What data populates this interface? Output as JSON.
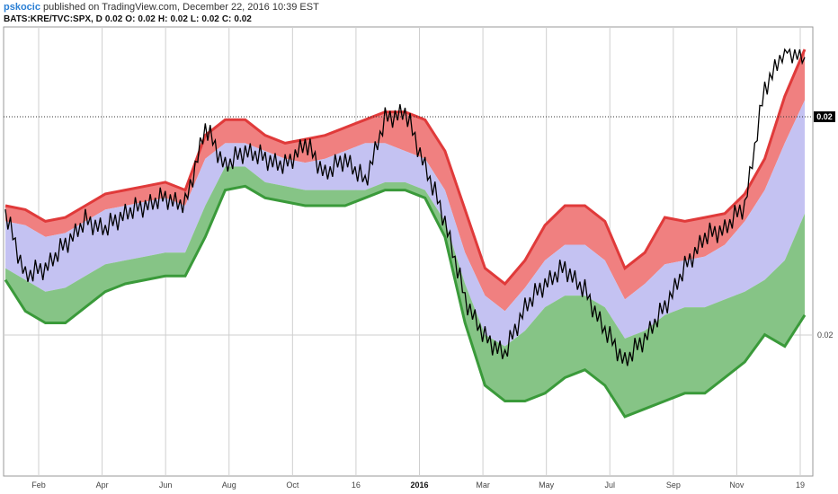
{
  "header": {
    "author": "pskocic",
    "published_text": "published on TradingView.com, December 22, 2016 10:39 EST"
  },
  "ohlc_bar": {
    "symbol": "BATS:KRE/TVC:SPX, D",
    "value": "0.02",
    "open_label": "O:",
    "open": "0.02",
    "high_label": "H:",
    "high": "0.02",
    "low_label": "L:",
    "low": "0.02",
    "close_label": "C:",
    "close": "0.02"
  },
  "colors": {
    "red_fill": "#f08080",
    "red_line": "#e03a3a",
    "blue_fill": "#c4c2f2",
    "green_fill": "#86c486",
    "green_line": "#3a9a3a",
    "price_line": "#000000",
    "grid": "#cfcfcf",
    "last_price_tag": "#000000"
  },
  "chart_data": {
    "type": "line",
    "x_ticks": [
      {
        "label": "Feb"
      },
      {
        "label": "Apr"
      },
      {
        "label": "Jun"
      },
      {
        "label": "Aug"
      },
      {
        "label": "Oct"
      },
      {
        "label": "16"
      },
      {
        "label": "2016",
        "bold": true
      },
      {
        "label": "Mar"
      },
      {
        "label": "May"
      },
      {
        "label": "Jul"
      },
      {
        "label": "Sep"
      },
      {
        "label": "Nov"
      },
      {
        "label": "19"
      }
    ],
    "y_ticks": [
      "0.02",
      "0.02"
    ],
    "last_price": "0.02",
    "note": "Price ratio KRE/SPX with smoothed envelope bands; relative levels on a 0-100 scale of visible range",
    "series": [
      {
        "name": "upper_band",
        "values": [
          60,
          59,
          56,
          57,
          60,
          63,
          64,
          65,
          66,
          64,
          78,
          82,
          82,
          78,
          76,
          77,
          78,
          80,
          82,
          84,
          84,
          82,
          74,
          59,
          44,
          40,
          46,
          55,
          60,
          60,
          56,
          44,
          48,
          57,
          56,
          57,
          58,
          63,
          72,
          88,
          100
        ]
      },
      {
        "name": "mid_upper",
        "values": [
          56,
          55,
          52,
          53,
          56,
          59,
          60,
          61,
          62,
          60,
          72,
          76,
          76,
          74,
          72,
          71,
          72,
          74,
          76,
          76,
          74,
          72,
          64,
          48,
          37,
          33,
          39,
          46,
          50,
          50,
          46,
          36,
          40,
          45,
          46,
          47,
          50,
          56,
          64,
          76,
          87
        ]
      },
      {
        "name": "mid_lower",
        "values": [
          44,
          41,
          38,
          39,
          42,
          45,
          46,
          47,
          48,
          48,
          60,
          70,
          70,
          66,
          65,
          64,
          64,
          64,
          64,
          66,
          66,
          64,
          56,
          40,
          27,
          24,
          28,
          34,
          37,
          37,
          34,
          26,
          28,
          32,
          34,
          34,
          36,
          38,
          41,
          46,
          58
        ]
      },
      {
        "name": "lower_band",
        "values": [
          41,
          33,
          30,
          30,
          34,
          38,
          40,
          41,
          42,
          42,
          52,
          64,
          65,
          62,
          61,
          60,
          60,
          60,
          62,
          64,
          64,
          62,
          52,
          30,
          14,
          10,
          10,
          12,
          16,
          18,
          14,
          6,
          8,
          10,
          12,
          12,
          16,
          20,
          27,
          24,
          32
        ]
      },
      {
        "name": "price",
        "values": [
          58,
          42,
          44,
          50,
          56,
          54,
          58,
          60,
          62,
          60,
          80,
          70,
          74,
          72,
          70,
          76,
          68,
          72,
          66,
          82,
          84,
          70,
          56,
          36,
          26,
          22,
          34,
          40,
          44,
          38,
          28,
          20,
          26,
          34,
          44,
          52,
          54,
          60,
          90,
          100,
          98
        ]
      }
    ]
  }
}
